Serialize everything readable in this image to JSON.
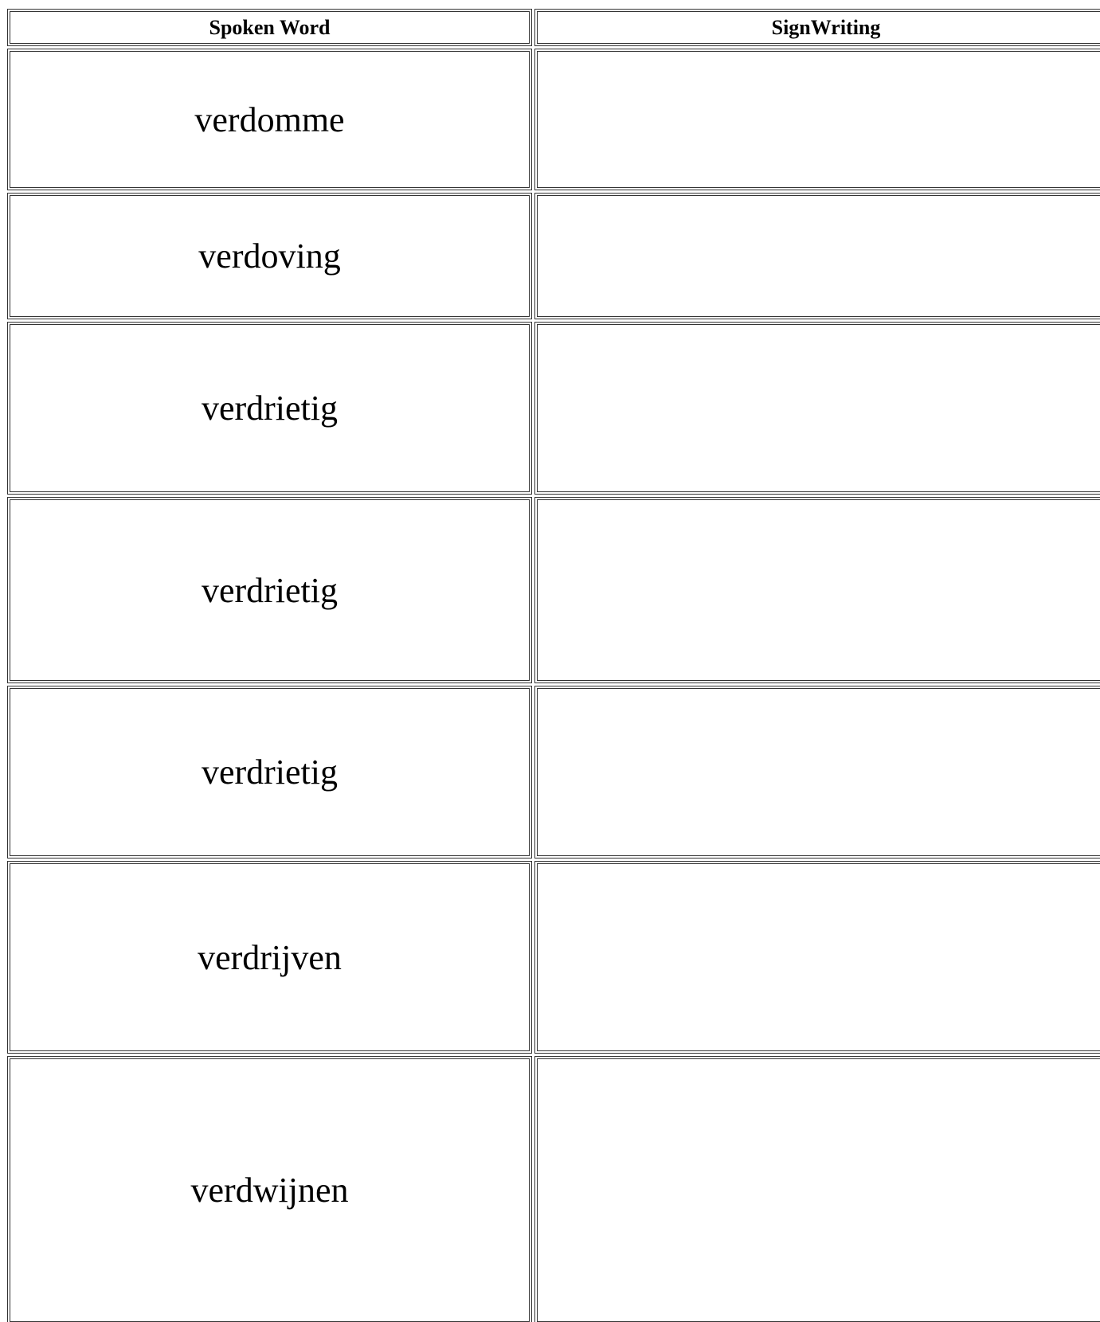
{
  "table": {
    "header": [
      "Spoken Word",
      "SignWriting"
    ],
    "rows": [
      {
        "word": "verdomme"
      },
      {
        "word": "verdoving"
      },
      {
        "word": "verdrietig"
      },
      {
        "word": "verdrietig"
      },
      {
        "word": "verdrietig"
      },
      {
        "word": "verdrijven"
      },
      {
        "word": "verdwijnen"
      }
    ]
  }
}
